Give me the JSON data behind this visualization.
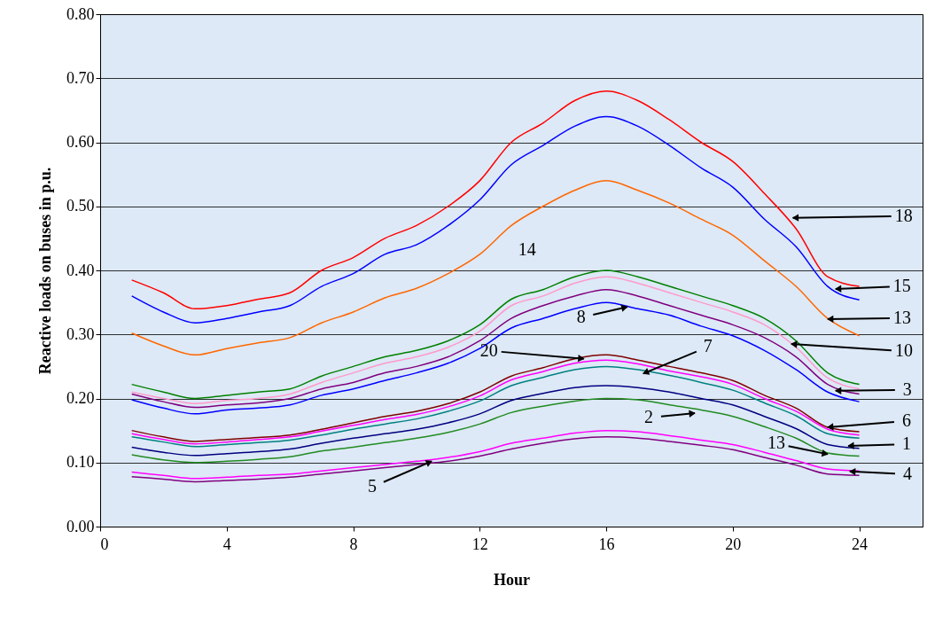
{
  "chart_data": {
    "type": "line",
    "xlabel": "Hour",
    "ylabel": "Reactive loads on buses in p.u.",
    "x": [
      1,
      2,
      3,
      4,
      5,
      6,
      7,
      8,
      9,
      10,
      11,
      12,
      13,
      14,
      15,
      16,
      17,
      18,
      19,
      20,
      21,
      22,
      23,
      24
    ],
    "xlim": [
      0,
      26
    ],
    "xticks": [
      0,
      4,
      8,
      12,
      16,
      20,
      24
    ],
    "ylim": [
      0,
      0.8
    ],
    "yticks": [
      {
        "value": 0,
        "label": "0.00"
      },
      {
        "value": 0.1,
        "label": "0.10"
      },
      {
        "value": 0.2,
        "label": "0.20"
      },
      {
        "value": 0.3,
        "label": "0.30"
      },
      {
        "value": 0.4,
        "label": "0.40"
      },
      {
        "value": 0.5,
        "label": "0.50"
      },
      {
        "value": 0.6,
        "label": "0.60"
      },
      {
        "value": 0.7,
        "label": "0.70"
      },
      {
        "value": 0.8,
        "label": "0.80"
      }
    ],
    "grid": "y",
    "marker": "none",
    "line_style": "solid",
    "series": [
      {
        "color": "#ff0000",
        "values": [
          0.385,
          0.365,
          0.34,
          0.345,
          0.355,
          0.365,
          0.4,
          0.42,
          0.45,
          0.47,
          0.5,
          0.54,
          0.6,
          0.63,
          0.665,
          0.68,
          0.665,
          0.635,
          0.6,
          0.57,
          0.52,
          0.465,
          0.39,
          0.375
        ]
      },
      {
        "color": "#0000ff",
        "values": [
          0.36,
          0.335,
          0.318,
          0.325,
          0.335,
          0.345,
          0.375,
          0.395,
          0.425,
          0.44,
          0.47,
          0.51,
          0.565,
          0.595,
          0.625,
          0.64,
          0.625,
          0.595,
          0.56,
          0.53,
          0.48,
          0.437,
          0.375,
          0.354
        ]
      },
      {
        "color": "#ff6600",
        "values": [
          0.302,
          0.282,
          0.268,
          0.278,
          0.287,
          0.295,
          0.318,
          0.335,
          0.357,
          0.372,
          0.395,
          0.425,
          0.47,
          0.5,
          0.525,
          0.54,
          0.525,
          0.505,
          0.48,
          0.455,
          0.415,
          0.375,
          0.325,
          0.298
        ]
      },
      {
        "color": "#008000",
        "values": [
          0.222,
          0.21,
          0.2,
          0.205,
          0.21,
          0.215,
          0.235,
          0.25,
          0.265,
          0.275,
          0.29,
          0.315,
          0.355,
          0.37,
          0.39,
          0.4,
          0.39,
          0.375,
          0.36,
          0.345,
          0.325,
          0.29,
          0.24,
          0.222
        ]
      },
      {
        "color": "#ff99cc",
        "values": [
          0.21,
          0.2,
          0.192,
          0.197,
          0.2,
          0.207,
          0.225,
          0.24,
          0.255,
          0.265,
          0.28,
          0.305,
          0.345,
          0.36,
          0.38,
          0.39,
          0.38,
          0.365,
          0.35,
          0.335,
          0.315,
          0.28,
          0.232,
          0.215
        ]
      },
      {
        "color": "#800080",
        "values": [
          0.207,
          0.195,
          0.186,
          0.19,
          0.193,
          0.2,
          0.215,
          0.225,
          0.24,
          0.25,
          0.265,
          0.29,
          0.325,
          0.345,
          0.36,
          0.37,
          0.36,
          0.345,
          0.33,
          0.315,
          0.295,
          0.265,
          0.222,
          0.207
        ]
      },
      {
        "color": "#0000ff",
        "values": [
          0.198,
          0.185,
          0.176,
          0.182,
          0.185,
          0.19,
          0.205,
          0.215,
          0.228,
          0.24,
          0.255,
          0.278,
          0.31,
          0.325,
          0.34,
          0.35,
          0.34,
          0.33,
          0.313,
          0.298,
          0.275,
          0.245,
          0.21,
          0.195
        ]
      },
      {
        "color": "#800000",
        "values": [
          0.15,
          0.14,
          0.133,
          0.136,
          0.139,
          0.143,
          0.152,
          0.162,
          0.172,
          0.18,
          0.192,
          0.21,
          0.235,
          0.248,
          0.262,
          0.268,
          0.26,
          0.25,
          0.24,
          0.228,
          0.205,
          0.185,
          0.155,
          0.148
        ]
      },
      {
        "color": "#ff00ff",
        "values": [
          0.145,
          0.136,
          0.129,
          0.132,
          0.136,
          0.14,
          0.149,
          0.158,
          0.167,
          0.175,
          0.187,
          0.204,
          0.229,
          0.242,
          0.255,
          0.26,
          0.254,
          0.243,
          0.234,
          0.222,
          0.2,
          0.18,
          0.152,
          0.143
        ]
      },
      {
        "color": "#008080",
        "values": [
          0.14,
          0.132,
          0.125,
          0.128,
          0.131,
          0.135,
          0.143,
          0.152,
          0.16,
          0.168,
          0.18,
          0.196,
          0.22,
          0.233,
          0.245,
          0.25,
          0.245,
          0.236,
          0.225,
          0.213,
          0.193,
          0.173,
          0.145,
          0.138
        ]
      },
      {
        "color": "#000080",
        "values": [
          0.124,
          0.116,
          0.111,
          0.114,
          0.117,
          0.121,
          0.13,
          0.138,
          0.145,
          0.152,
          0.162,
          0.176,
          0.197,
          0.208,
          0.217,
          0.22,
          0.217,
          0.21,
          0.2,
          0.19,
          0.172,
          0.153,
          0.128,
          0.122
        ]
      },
      {
        "color": "#228b22",
        "values": [
          0.112,
          0.104,
          0.1,
          0.102,
          0.105,
          0.109,
          0.118,
          0.124,
          0.131,
          0.138,
          0.147,
          0.16,
          0.178,
          0.188,
          0.196,
          0.2,
          0.198,
          0.19,
          0.182,
          0.172,
          0.156,
          0.138,
          0.115,
          0.11
        ]
      },
      {
        "color": "#ff00ff",
        "values": [
          0.085,
          0.08,
          0.075,
          0.077,
          0.08,
          0.082,
          0.087,
          0.092,
          0.097,
          0.102,
          0.108,
          0.117,
          0.13,
          0.138,
          0.146,
          0.15,
          0.148,
          0.142,
          0.135,
          0.128,
          0.116,
          0.103,
          0.09,
          0.087
        ]
      },
      {
        "color": "#800080",
        "values": [
          0.078,
          0.074,
          0.07,
          0.072,
          0.074,
          0.077,
          0.082,
          0.087,
          0.092,
          0.097,
          0.102,
          0.11,
          0.121,
          0.13,
          0.137,
          0.14,
          0.138,
          0.133,
          0.127,
          0.12,
          0.108,
          0.096,
          0.082,
          0.08
        ]
      }
    ],
    "annotations": [
      {
        "text": "18",
        "x": 21.9,
        "y": 0.482
      },
      {
        "text": "15",
        "x": 23.25,
        "y": 0.371
      },
      {
        "text": "13",
        "x": 23.0,
        "y": 0.324
      },
      {
        "text": "10",
        "x": 21.85,
        "y": 0.285
      },
      {
        "text": "3",
        "x": 23.25,
        "y": 0.212
      },
      {
        "text": "6",
        "x": 23.0,
        "y": 0.155
      },
      {
        "text": "1",
        "x": 23.65,
        "y": 0.126
      },
      {
        "text": "13",
        "x": 23.0,
        "y": 0.113
      },
      {
        "text": "4",
        "x": 23.7,
        "y": 0.086
      },
      {
        "text": "14",
        "x": 13.5,
        "y": 0.485
      },
      {
        "text": "8",
        "x": 16.66,
        "y": 0.343
      },
      {
        "text": "20",
        "x": 15.29,
        "y": 0.262
      },
      {
        "text": "7",
        "x": 17.17,
        "y": 0.239
      },
      {
        "text": "2",
        "x": 18.8,
        "y": 0.177
      },
      {
        "text": "5",
        "x": 10.48,
        "y": 0.102
      }
    ]
  }
}
